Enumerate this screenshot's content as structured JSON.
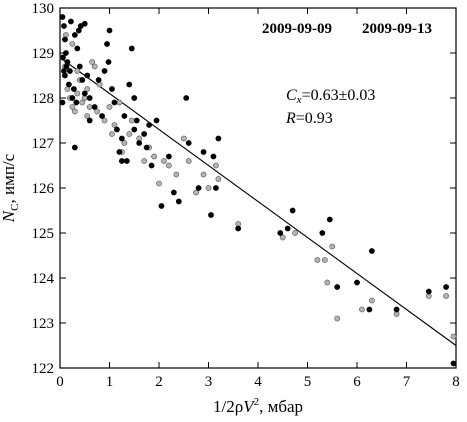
{
  "chart_data": {
    "type": "scatter",
    "xlabel": {
      "pre": "1/2",
      "rho": "ρ",
      "var": "V",
      "sup": "2",
      "post": ", мбар"
    },
    "ylabel": {
      "var": "N",
      "sub": "C",
      "post": ", имп/с"
    },
    "xlim": [
      0,
      8
    ],
    "ylim": [
      122,
      130
    ],
    "xticks": [
      0,
      1,
      2,
      3,
      4,
      5,
      6,
      7,
      8
    ],
    "yticks": [
      122,
      123,
      124,
      125,
      126,
      127,
      128,
      129,
      130
    ],
    "grid": false,
    "legend_position": "top-right",
    "legend": [
      "2009-09-09",
      "2009-09-13"
    ],
    "annotation": {
      "cx_label": "C",
      "cx_sub": "x",
      "cx_value": "=0.63±0.03",
      "r_label": "R",
      "r_value": "=0.93"
    },
    "fit_line": {
      "x": [
        0,
        8
      ],
      "y": [
        128.9,
        122.5
      ]
    },
    "series": [
      {
        "color": "#000000",
        "fill": "#000000",
        "points": [
          [
            0.05,
            129.8
          ],
          [
            0.08,
            129.6
          ],
          [
            0.1,
            129.3
          ],
          [
            0.12,
            129.0
          ],
          [
            0.06,
            128.9
          ],
          [
            0.15,
            128.8
          ],
          [
            0.2,
            128.6
          ],
          [
            0.1,
            128.5
          ],
          [
            0.18,
            128.3
          ],
          [
            0.25,
            128.0
          ],
          [
            0.3,
            129.4
          ],
          [
            0.35,
            129.1
          ],
          [
            0.4,
            128.7
          ],
          [
            0.45,
            128.4
          ],
          [
            0.5,
            128.1
          ],
          [
            0.28,
            128.2
          ],
          [
            0.33,
            127.9
          ],
          [
            0.22,
            129.7
          ],
          [
            0.38,
            129.5
          ],
          [
            0.42,
            129.6
          ],
          [
            0.5,
            129.65
          ],
          [
            0.08,
            128.6
          ],
          [
            0.13,
            128.7
          ],
          [
            0.55,
            128.5
          ],
          [
            0.6,
            128.0
          ],
          [
            0.7,
            127.8
          ],
          [
            0.78,
            128.4
          ],
          [
            0.85,
            127.6
          ],
          [
            0.9,
            128.6
          ],
          [
            0.95,
            129.2
          ],
          [
            1.0,
            129.5
          ],
          [
            1.05,
            128.2
          ],
          [
            1.1,
            127.9
          ],
          [
            0.98,
            128.8
          ],
          [
            1.15,
            127.3
          ],
          [
            1.2,
            126.8
          ],
          [
            1.25,
            127.1
          ],
          [
            1.3,
            127.6
          ],
          [
            1.35,
            126.6
          ],
          [
            1.4,
            128.3
          ],
          [
            1.45,
            129.1
          ],
          [
            1.5,
            128.0
          ],
          [
            1.55,
            127.5
          ],
          [
            1.6,
            127.0
          ],
          [
            1.7,
            127.2
          ],
          [
            1.75,
            126.9
          ],
          [
            1.8,
            127.4
          ],
          [
            1.85,
            126.5
          ],
          [
            1.95,
            127.5
          ],
          [
            2.05,
            125.6
          ],
          [
            2.2,
            126.7
          ],
          [
            2.3,
            125.9
          ],
          [
            2.4,
            125.7
          ],
          [
            2.55,
            128.0
          ],
          [
            2.6,
            127.0
          ],
          [
            2.8,
            126.0
          ],
          [
            2.9,
            126.8
          ],
          [
            3.05,
            125.4
          ],
          [
            3.1,
            126.7
          ],
          [
            3.15,
            126.0
          ],
          [
            3.2,
            127.1
          ],
          [
            3.6,
            125.1
          ],
          [
            4.45,
            125.0
          ],
          [
            4.6,
            125.1
          ],
          [
            4.7,
            125.5
          ],
          [
            5.3,
            125.0
          ],
          [
            5.45,
            125.3
          ],
          [
            5.6,
            123.8
          ],
          [
            6.0,
            123.9
          ],
          [
            6.25,
            123.3
          ],
          [
            6.3,
            124.6
          ],
          [
            6.8,
            123.3
          ],
          [
            7.45,
            123.7
          ],
          [
            7.8,
            123.8
          ],
          [
            7.95,
            122.1
          ],
          [
            0.3,
            126.9
          ],
          [
            0.6,
            127.5
          ],
          [
            1.25,
            126.6
          ],
          [
            1.5,
            127.3
          ],
          [
            0.05,
            127.9
          ]
        ]
      },
      {
        "color": "#555555",
        "fill": "#b4b4b4",
        "points": [
          [
            0.05,
            128.9
          ],
          [
            0.1,
            128.7
          ],
          [
            0.15,
            128.2
          ],
          [
            0.2,
            128.0
          ],
          [
            0.25,
            127.8
          ],
          [
            0.3,
            127.7
          ],
          [
            0.35,
            128.1
          ],
          [
            0.4,
            128.4
          ],
          [
            0.45,
            127.9
          ],
          [
            0.5,
            128.0
          ],
          [
            0.55,
            127.6
          ],
          [
            0.6,
            127.8
          ],
          [
            0.65,
            128.8
          ],
          [
            0.7,
            128.7
          ],
          [
            0.8,
            128.3
          ],
          [
            0.9,
            127.5
          ],
          [
            1.0,
            127.8
          ],
          [
            1.1,
            127.4
          ],
          [
            1.2,
            127.9
          ],
          [
            1.3,
            127.0
          ],
          [
            1.4,
            127.2
          ],
          [
            1.45,
            127.5
          ],
          [
            1.6,
            127.1
          ],
          [
            1.7,
            126.6
          ],
          [
            1.8,
            126.9
          ],
          [
            1.9,
            126.7
          ],
          [
            2.0,
            126.1
          ],
          [
            2.1,
            126.6
          ],
          [
            2.2,
            126.5
          ],
          [
            2.35,
            126.3
          ],
          [
            2.5,
            127.1
          ],
          [
            2.6,
            126.6
          ],
          [
            2.75,
            125.9
          ],
          [
            2.9,
            126.3
          ],
          [
            3.0,
            126.0
          ],
          [
            3.15,
            126.5
          ],
          [
            3.2,
            126.2
          ],
          [
            3.6,
            125.2
          ],
          [
            4.5,
            124.9
          ],
          [
            4.75,
            125.0
          ],
          [
            5.2,
            124.4
          ],
          [
            5.35,
            124.4
          ],
          [
            5.5,
            124.7
          ],
          [
            5.6,
            123.1
          ],
          [
            5.4,
            123.9
          ],
          [
            6.1,
            123.3
          ],
          [
            6.3,
            123.5
          ],
          [
            6.8,
            123.2
          ],
          [
            7.45,
            123.6
          ],
          [
            7.8,
            123.6
          ],
          [
            7.95,
            122.7
          ],
          [
            0.12,
            129.4
          ],
          [
            0.25,
            129.2
          ],
          [
            0.35,
            128.6
          ],
          [
            0.55,
            128.2
          ],
          [
            0.75,
            127.7
          ],
          [
            1.05,
            127.2
          ],
          [
            1.25,
            126.8
          ]
        ]
      }
    ]
  }
}
